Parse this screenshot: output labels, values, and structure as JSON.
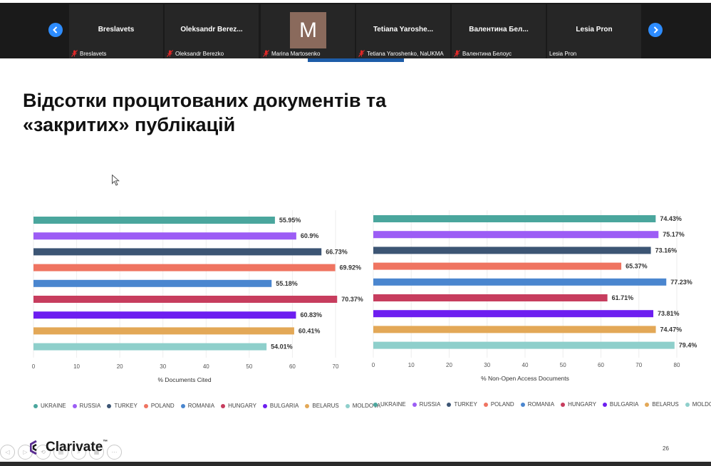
{
  "participants": [
    {
      "name": "Breslavets",
      "label": "Breslavets",
      "muted": true
    },
    {
      "name": "Oleksandr  Berez...",
      "label": "Oleksandr Berezko",
      "muted": true
    },
    {
      "name": "",
      "label": "Marina Martosenko",
      "muted": true,
      "avatar": "M"
    },
    {
      "name": "Tetiana  Yaroshe...",
      "label": "Tetiana Yaroshenko, NaUKMA",
      "muted": true
    },
    {
      "name": "Валентина  Бел...",
      "label": "Валентина Белоус",
      "muted": true
    },
    {
      "name": "Lesia Pron",
      "label": "Lesia Pron",
      "muted": false
    }
  ],
  "nav": {
    "prev_icon": "chevron-left-icon",
    "next_icon": "chevron-right-icon"
  },
  "slide": {
    "title_line1": "Відсотки процитованих документів та",
    "title_line2": "«закритих» публікацій",
    "logo_text": "Clarivate",
    "logo_tm": "™",
    "page_number": "26"
  },
  "colors": {
    "accent_blue": "#2d8cff",
    "series": [
      "#4aa69d",
      "#9c5df5",
      "#3c5574",
      "#ef7461",
      "#4a86cf",
      "#c73d5e",
      "#6d1ef0",
      "#e3a857",
      "#8ecfcb"
    ]
  },
  "chart_data": [
    {
      "type": "bar",
      "orientation": "horizontal",
      "categories": [
        "UKRAINE",
        "RUSSIA",
        "TURKEY",
        "POLAND",
        "ROMANIA",
        "HUNGARY",
        "BULGARIA",
        "BELARUS",
        "MOLDOVA"
      ],
      "values": [
        55.95,
        60.9,
        66.73,
        69.92,
        55.18,
        70.37,
        60.83,
        60.41,
        54.01
      ],
      "value_labels": [
        "55.95%",
        "60.9%",
        "66.73%",
        "69.92%",
        "55.18%",
        "70.37%",
        "60.83%",
        "60.41%",
        "54.01%"
      ],
      "xlabel": "% Documents Cited",
      "xlim": [
        0,
        70
      ],
      "ticks": [
        0,
        10,
        20,
        30,
        40,
        50,
        60,
        70
      ],
      "legend": "bottom"
    },
    {
      "type": "bar",
      "orientation": "horizontal",
      "categories": [
        "UKRAINE",
        "RUSSIA",
        "TURKEY",
        "POLAND",
        "ROMANIA",
        "HUNGARY",
        "BULGARIA",
        "BELARUS",
        "MOLDOVA"
      ],
      "values": [
        74.43,
        75.17,
        73.16,
        65.37,
        77.23,
        61.71,
        73.81,
        74.47,
        79.4
      ],
      "value_labels": [
        "74.43%",
        "75.17%",
        "73.16%",
        "65.37%",
        "77.23%",
        "61.71%",
        "73.81%",
        "74.47%",
        "79.4%"
      ],
      "xlabel": "% Non-Open Access Documents",
      "xlim": [
        0,
        80
      ],
      "ticks": [
        0,
        10,
        20,
        30,
        40,
        50,
        60,
        70,
        80
      ],
      "legend": "bottom"
    }
  ],
  "controls": [
    "◁",
    "▷",
    "⟲",
    "▤",
    "⌕",
    "▦",
    "⋯"
  ]
}
